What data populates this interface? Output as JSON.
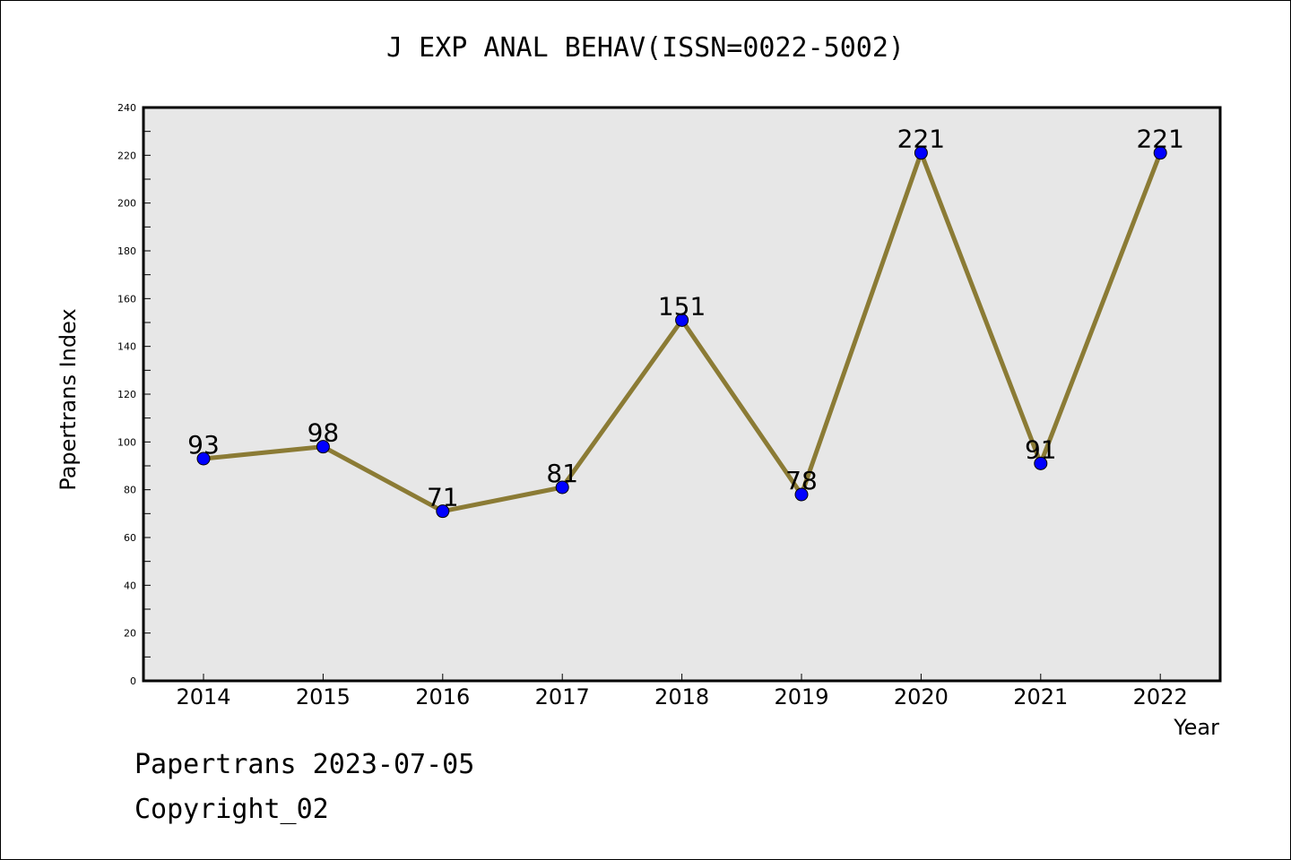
{
  "chart_data": {
    "type": "line",
    "title": "J EXP ANAL BEHAV(ISSN=0022-5002)",
    "xlabel": "Year",
    "ylabel": "Papertrans Index",
    "categories": [
      "2014",
      "2015",
      "2016",
      "2017",
      "2018",
      "2019",
      "2020",
      "2021",
      "2022"
    ],
    "series": [
      {
        "values": [
          93,
          98,
          71,
          81,
          151,
          78,
          221,
          91,
          221
        ]
      }
    ],
    "ylim": [
      0,
      240
    ],
    "yticks": [
      0,
      20,
      40,
      60,
      80,
      100,
      120,
      140,
      160,
      180,
      200,
      220,
      240
    ],
    "grid": false,
    "data_labels": true,
    "colors": {
      "line": "#8b7b35",
      "marker": "#0000ff",
      "plot_background": "#e7e7e7"
    }
  },
  "footer": {
    "line1": "Papertrans 2023-07-05",
    "line2": "Copyright_02"
  }
}
